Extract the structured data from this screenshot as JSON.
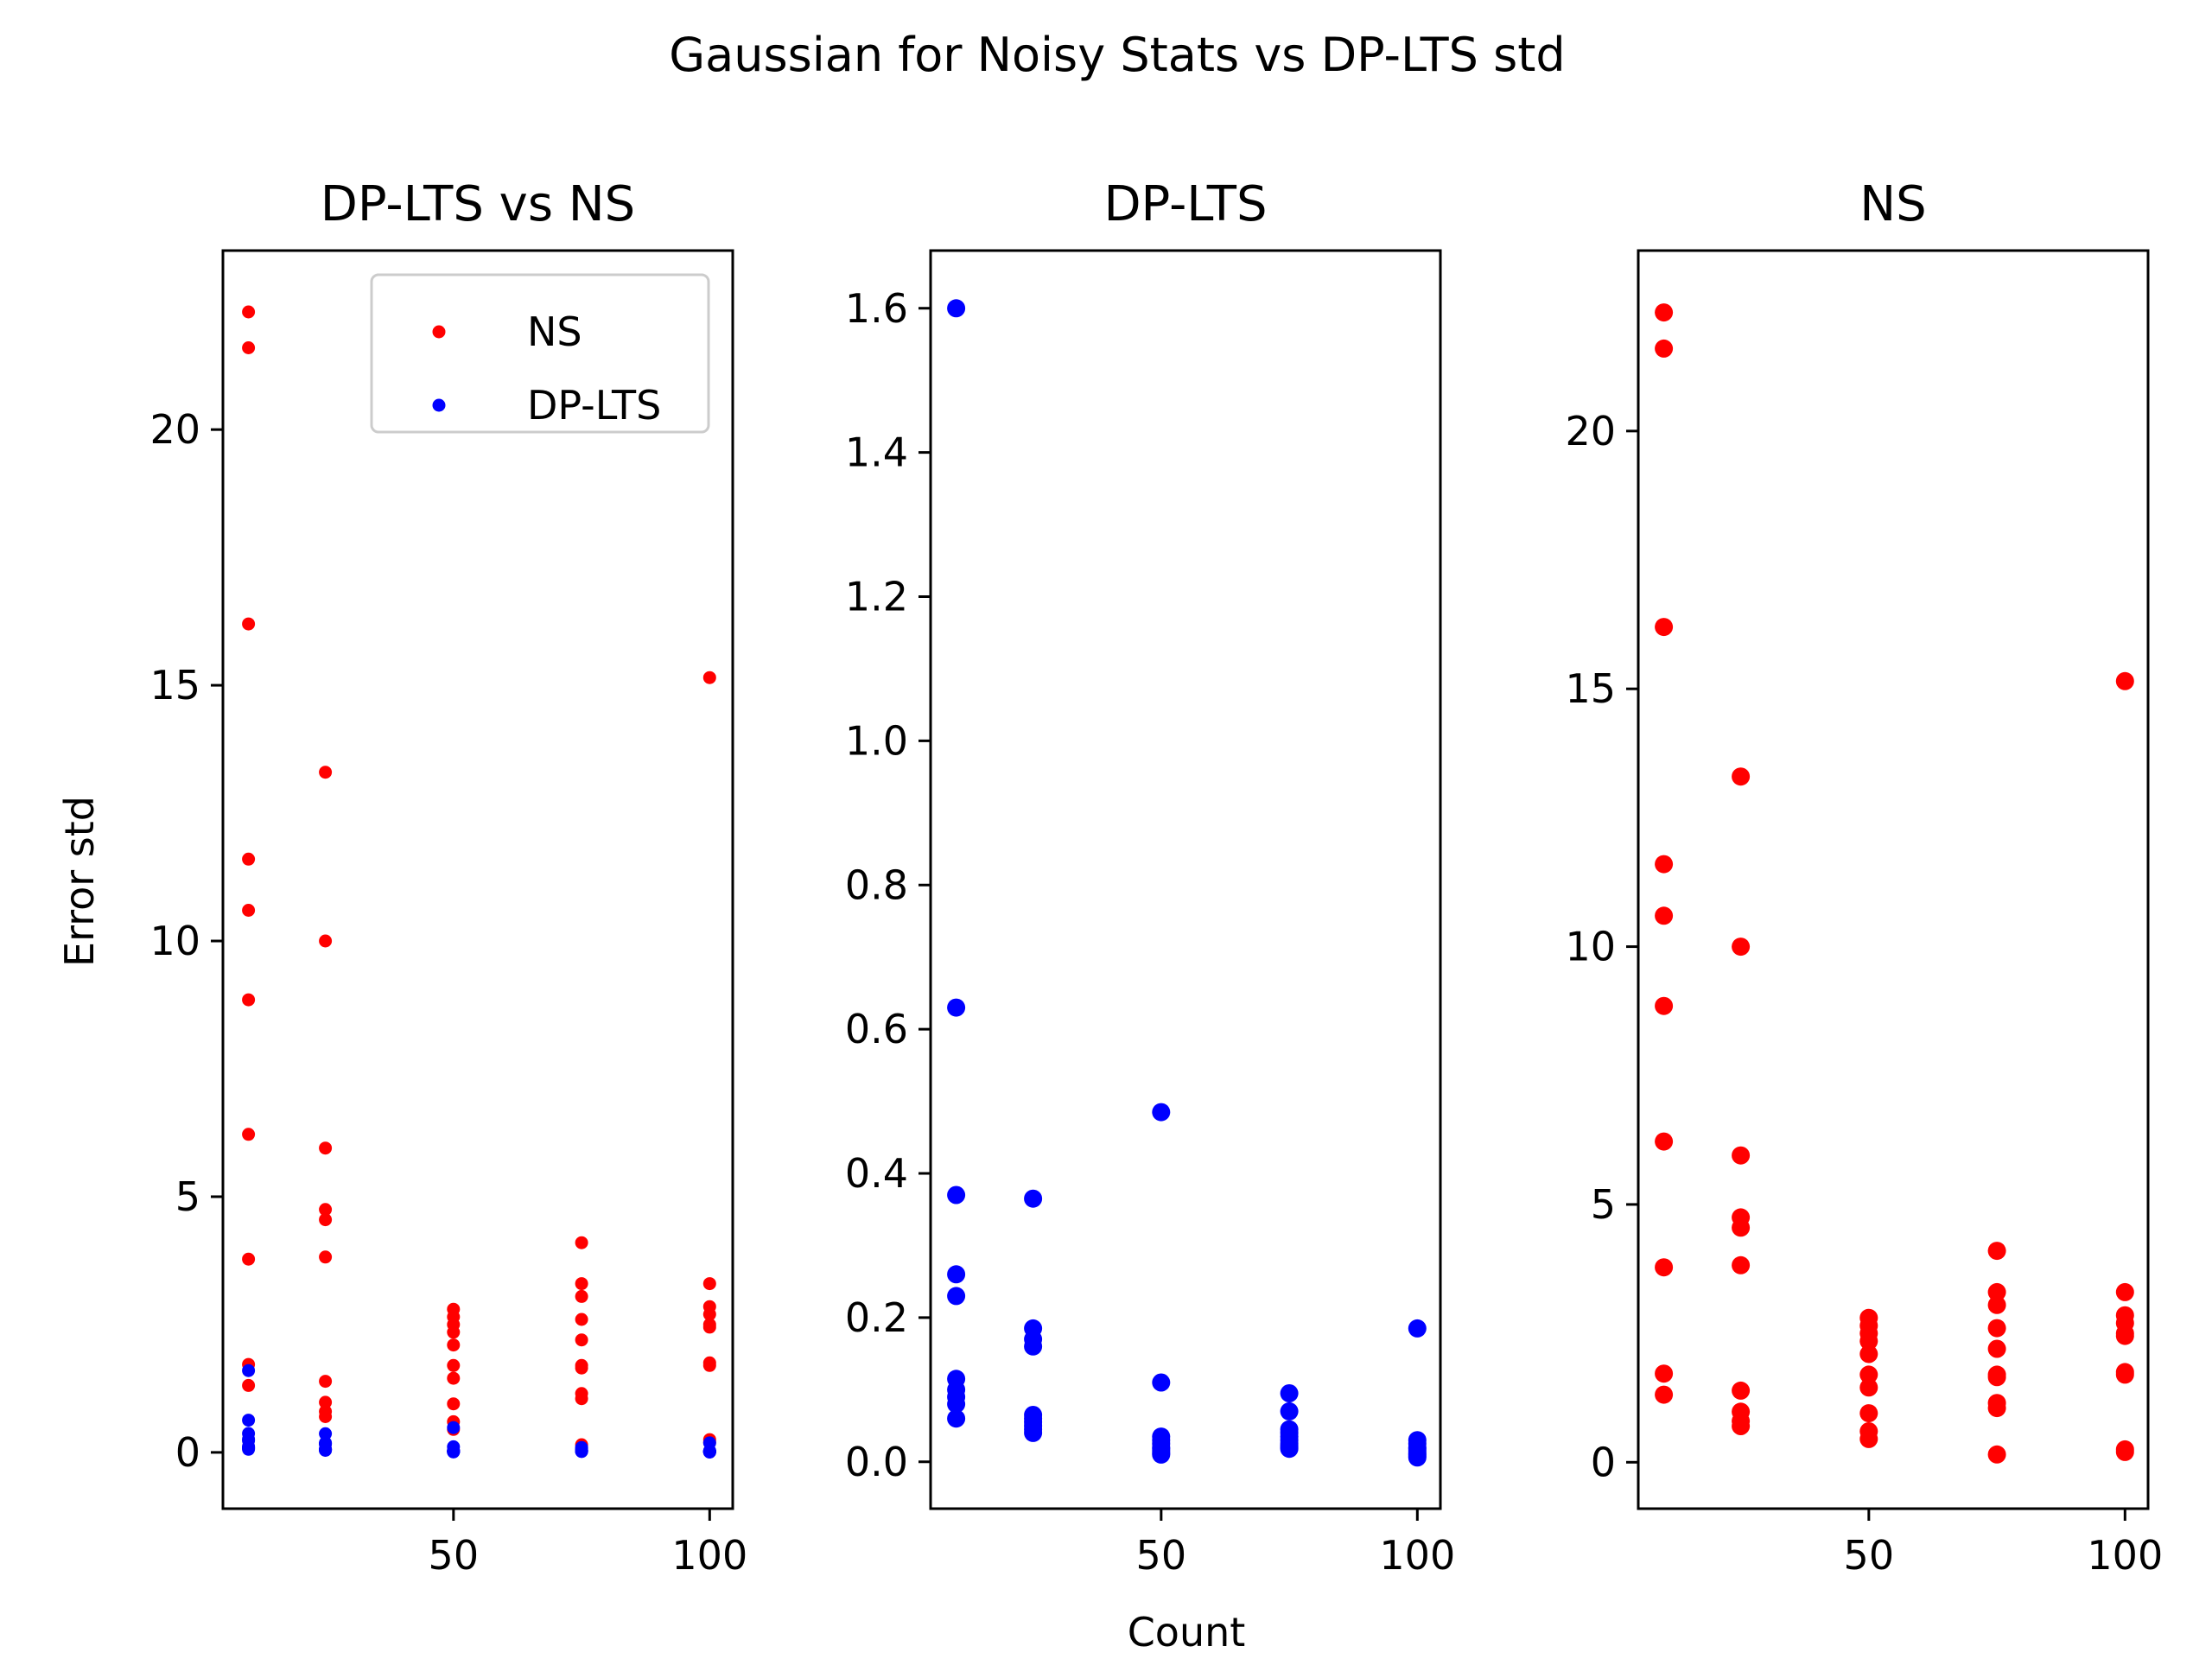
{
  "figure": {
    "title": "Gaussian for Noisy Stats vs DP-LTS std",
    "xlabel": "Count",
    "ylabel": "Error std"
  },
  "colors": {
    "ns": "#ff0000",
    "dplts": "#0000ff"
  },
  "chart_data": [
    {
      "type": "scatter",
      "title": "DP-LTS vs NS",
      "ylabel": "Error std",
      "xlim": [
        5,
        104.5
      ],
      "ylim": [
        -1.1,
        23.5
      ],
      "xticks": [
        50,
        100
      ],
      "yticks": [
        0,
        5,
        10,
        15,
        20
      ],
      "ytick_labels": [
        "0",
        "5",
        "10",
        "15",
        "20"
      ],
      "legend": "top-right",
      "series": [
        {
          "name": "NS",
          "color": "#ff0000",
          "x": [
            10,
            10,
            10,
            10,
            10,
            10,
            10,
            10,
            10,
            10,
            25,
            25,
            25,
            25,
            25,
            25,
            25,
            25,
            25,
            25,
            50,
            50,
            50,
            50,
            50,
            50,
            50,
            50,
            50,
            50,
            75,
            75,
            75,
            75,
            75,
            75,
            75,
            75,
            75,
            75,
            100,
            100,
            100,
            100,
            100,
            100,
            100,
            100,
            100,
            100
          ],
          "y": [
            22.3,
            21.6,
            16.2,
            11.6,
            10.6,
            8.85,
            6.22,
            3.78,
            1.72,
            1.31,
            13.3,
            10.0,
            5.95,
            4.75,
            4.55,
            3.82,
            1.39,
            0.98,
            0.8,
            0.7,
            2.8,
            2.65,
            2.5,
            2.35,
            2.1,
            1.7,
            1.45,
            0.95,
            0.6,
            0.45,
            4.1,
            3.3,
            3.05,
            2.6,
            2.2,
            1.7,
            1.65,
            1.15,
            1.05,
            0.15,
            15.15,
            3.3,
            2.85,
            2.7,
            2.5,
            2.45,
            1.75,
            1.7,
            0.25,
            0.2
          ]
        },
        {
          "name": "DP-LTS",
          "color": "#0000ff",
          "x": [
            10,
            10,
            10,
            10,
            10,
            10,
            10,
            10,
            10,
            10,
            25,
            25,
            25,
            25,
            25,
            25,
            25,
            25,
            25,
            25,
            50,
            50,
            50,
            50,
            50,
            50,
            50,
            50,
            50,
            50,
            75,
            75,
            75,
            75,
            75,
            75,
            75,
            75,
            75,
            75,
            100,
            100,
            100,
            100,
            100,
            100,
            100,
            100,
            100,
            100
          ],
          "y": [
            1.6,
            0.63,
            0.37,
            0.26,
            0.23,
            0.115,
            0.1,
            0.09,
            0.08,
            0.06,
            0.365,
            0.185,
            0.17,
            0.16,
            0.065,
            0.06,
            0.055,
            0.05,
            0.045,
            0.04,
            0.485,
            0.11,
            0.035,
            0.03,
            0.025,
            0.02,
            0.018,
            0.015,
            0.012,
            0.01,
            0.095,
            0.07,
            0.045,
            0.04,
            0.035,
            0.03,
            0.025,
            0.022,
            0.02,
            0.018,
            0.185,
            0.03,
            0.025,
            0.02,
            0.018,
            0.015,
            0.012,
            0.01,
            0.008,
            0.006
          ]
        }
      ]
    },
    {
      "type": "scatter",
      "title": "DP-LTS",
      "xlabel": "Count",
      "xlim": [
        5,
        104.5
      ],
      "ylim": [
        -0.065,
        1.68
      ],
      "xticks": [
        50,
        100
      ],
      "yticks": [
        0,
        0.2,
        0.4,
        0.6,
        0.8,
        1.0,
        1.2,
        1.4,
        1.6
      ],
      "ytick_labels": [
        "0.0",
        "0.2",
        "0.4",
        "0.6",
        "0.8",
        "1.0",
        "1.2",
        "1.4",
        "1.6"
      ],
      "series": [
        {
          "color": "#0000ff",
          "x": [
            10,
            10,
            10,
            10,
            10,
            10,
            10,
            10,
            10,
            10,
            25,
            25,
            25,
            25,
            25,
            25,
            25,
            25,
            25,
            25,
            50,
            50,
            50,
            50,
            50,
            50,
            50,
            50,
            50,
            50,
            75,
            75,
            75,
            75,
            75,
            75,
            75,
            75,
            75,
            75,
            100,
            100,
            100,
            100,
            100,
            100,
            100,
            100,
            100,
            100
          ],
          "y": [
            1.6,
            0.63,
            0.37,
            0.26,
            0.23,
            0.115,
            0.1,
            0.09,
            0.08,
            0.06,
            0.365,
            0.185,
            0.17,
            0.16,
            0.065,
            0.06,
            0.055,
            0.05,
            0.045,
            0.04,
            0.485,
            0.11,
            0.035,
            0.03,
            0.025,
            0.02,
            0.018,
            0.015,
            0.012,
            0.01,
            0.095,
            0.07,
            0.045,
            0.04,
            0.035,
            0.03,
            0.025,
            0.022,
            0.02,
            0.018,
            0.185,
            0.03,
            0.025,
            0.02,
            0.018,
            0.015,
            0.012,
            0.01,
            0.008,
            0.006
          ]
        }
      ]
    },
    {
      "type": "scatter",
      "title": "NS",
      "xlim": [
        5,
        104.5
      ],
      "ylim": [
        -0.9,
        23.5
      ],
      "xticks": [
        50,
        100
      ],
      "yticks": [
        0,
        5,
        10,
        15,
        20
      ],
      "ytick_labels": [
        "0",
        "5",
        "10",
        "15",
        "20"
      ],
      "series": [
        {
          "color": "#ff0000",
          "x": [
            10,
            10,
            10,
            10,
            10,
            10,
            10,
            10,
            10,
            10,
            25,
            25,
            25,
            25,
            25,
            25,
            25,
            25,
            25,
            25,
            50,
            50,
            50,
            50,
            50,
            50,
            50,
            50,
            50,
            50,
            75,
            75,
            75,
            75,
            75,
            75,
            75,
            75,
            75,
            75,
            100,
            100,
            100,
            100,
            100,
            100,
            100,
            100,
            100,
            100
          ],
          "y": [
            22.3,
            21.6,
            16.2,
            11.6,
            10.6,
            8.85,
            6.22,
            3.78,
            1.72,
            1.31,
            13.3,
            10.0,
            5.95,
            4.75,
            4.55,
            3.82,
            1.39,
            0.98,
            0.8,
            0.7,
            2.8,
            2.65,
            2.5,
            2.35,
            2.1,
            1.7,
            1.45,
            0.95,
            0.6,
            0.45,
            4.1,
            3.3,
            3.05,
            2.6,
            2.2,
            1.7,
            1.65,
            1.15,
            1.05,
            0.15,
            15.15,
            3.3,
            2.85,
            2.7,
            2.5,
            2.45,
            1.75,
            1.7,
            0.25,
            0.2
          ]
        }
      ]
    }
  ]
}
